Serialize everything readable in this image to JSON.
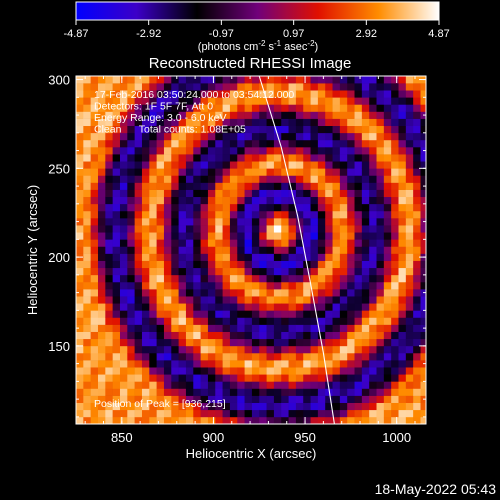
{
  "chart_data": {
    "type": "heatmap",
    "title": "Reconstructed RHESSI Image",
    "xlabel": "Heliocentric X (arcsec)",
    "ylabel": "Heliocentric Y (arcsec)",
    "xlim": [
      825,
      1016
    ],
    "ylim": [
      106,
      302
    ],
    "x_ticks": [
      850,
      900,
      950,
      1000
    ],
    "y_ticks": [
      150,
      200,
      250,
      300
    ],
    "x_tick_labels": [
      "850",
      "900",
      "950",
      "1000"
    ],
    "y_tick_labels": [
      "150",
      "200",
      "250",
      "300"
    ],
    "colorbar": {
      "range": [
        -4.87,
        4.87
      ],
      "ticks": [
        -4.87,
        -2.92,
        -0.97,
        0.97,
        2.92,
        4.87
      ],
      "tick_labels": [
        "-4.87",
        "-2.92",
        "-0.97",
        "0.97",
        "2.92",
        "4.87"
      ],
      "unit_main": "(photons cm",
      "unit_sup1": "-2",
      "unit_mid": " s",
      "unit_sup2": "-1",
      "unit_tail": " asec",
      "unit_sup3": "-2",
      "unit_end": ")",
      "colors": [
        "#0000ff",
        "#3c00c8",
        "#000000",
        "#70007a",
        "#e01000",
        "#ff8c00",
        "#ffffff"
      ]
    },
    "info_lines": [
      "17-Feb-2016 03:50:24.000 to 03:54:12.000",
      "Detectors: 1F 5F 7F, Att 0",
      "Energy Range: 3.0 - 6.0 keV",
      "Clean      Total counts: 1.08E+05"
    ],
    "peak_label": "Position of Peak = [936,215]",
    "peak": [
      936,
      215
    ],
    "pixel_size_arcsec": 4,
    "source": {
      "center": [
        936,
        215
      ],
      "rings": [
        {
          "radius": 0,
          "value": 4.87
        },
        {
          "radius": 20,
          "value": -3.5
        },
        {
          "radius": 36,
          "value": 3.4
        },
        {
          "radius": 56,
          "value": -2.9
        },
        {
          "radius": 76,
          "value": 3.6
        },
        {
          "radius": 96,
          "value": -3.1
        },
        {
          "radius": 116,
          "value": 3.4
        }
      ]
    },
    "limb": [
      [
        925,
        302
      ],
      [
        937,
        262
      ],
      [
        946,
        223
      ],
      [
        953,
        185
      ],
      [
        960,
        146
      ],
      [
        966,
        106
      ]
    ]
  },
  "footer_date": "18-May-2022 05:43"
}
